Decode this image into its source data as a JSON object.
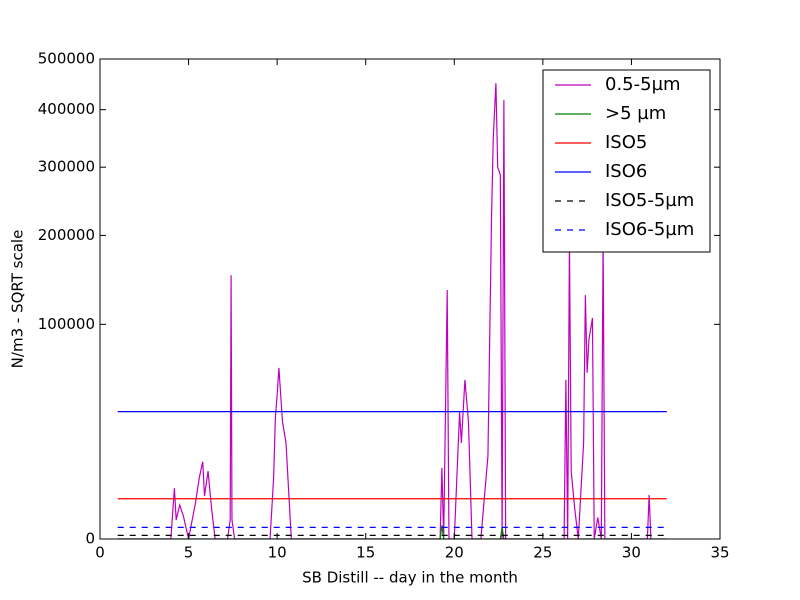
{
  "chart_data": {
    "type": "line",
    "xlabel": "SB Distill -- day in the month",
    "ylabel": "N/m3 - SQRT scale",
    "yscale": "sqrt",
    "xlim": [
      0,
      35
    ],
    "xticks": [
      0,
      5,
      10,
      15,
      20,
      25,
      30,
      35
    ],
    "ylim": [
      0,
      500000
    ],
    "yticks": [
      0,
      100000,
      200000,
      300000,
      400000,
      500000
    ],
    "legend": "upper right",
    "series": [
      {
        "name": "0.5-5µm",
        "color": "#bf00bf",
        "dash": false,
        "x": [
          1,
          4.0,
          4.2,
          4.3,
          4.5,
          4.7,
          5.0,
          5.4,
          5.6,
          5.8,
          5.9,
          6.1,
          6.3,
          6.5,
          7.2,
          7.35,
          7.4,
          7.45,
          7.6,
          9.6,
          9.8,
          9.9,
          10.0,
          10.1,
          10.3,
          10.5,
          10.8,
          12.0,
          12.2,
          19.2,
          19.3,
          19.4,
          19.6,
          19.7,
          20.0,
          20.3,
          20.4,
          20.6,
          20.8,
          21.0,
          21.5,
          21.9,
          22.1,
          22.2,
          22.35,
          22.45,
          22.6,
          22.7,
          22.8,
          22.9,
          23.2,
          25.0,
          26.2,
          26.3,
          26.4,
          26.5,
          26.6,
          26.8,
          27.0,
          27.3,
          27.4,
          27.5,
          27.6,
          27.8,
          27.9,
          28.1,
          28.3,
          28.4,
          28.5,
          30.9,
          31.0,
          31.1
        ],
        "values": [
          0,
          0,
          5600,
          800,
          2500,
          1200,
          0,
          3000,
          8000,
          13000,
          4000,
          10000,
          2000,
          0,
          0,
          800,
          151000,
          800,
          0,
          0,
          8000,
          31800,
          45000,
          63500,
          30000,
          20000,
          0,
          0,
          0,
          0,
          11000,
          0,
          134500,
          0,
          0,
          35000,
          20000,
          54900,
          30000,
          0,
          0,
          15000,
          221000,
          349000,
          451000,
          300000,
          287500,
          0,
          418000,
          0,
          0,
          0,
          0,
          55000,
          0,
          194000,
          10000,
          2000,
          0,
          20000,
          129000,
          60000,
          86000,
          106000,
          0,
          1000,
          0,
          194000,
          0,
          0,
          4200,
          0
        ]
      },
      {
        "name": ">5 µm",
        "color": "#008000",
        "dash": false,
        "x": [
          1,
          19.2,
          19.3,
          19.4,
          22.6,
          22.7,
          22.8,
          32
        ],
        "values": [
          0,
          0,
          400,
          0,
          0,
          300,
          0,
          0
        ]
      },
      {
        "name": "ISO5",
        "color": "#ff0000",
        "dash": false,
        "x": [
          1,
          32
        ],
        "values": [
          3520,
          3520
        ]
      },
      {
        "name": "ISO6",
        "color": "#0000ff",
        "dash": false,
        "x": [
          1,
          32
        ],
        "values": [
          35200,
          35200
        ]
      },
      {
        "name": "ISO5-5µm",
        "color": "#000000",
        "dash": true,
        "x": [
          1,
          32
        ],
        "values": [
          29,
          29
        ]
      },
      {
        "name": "ISO6-5µm",
        "color": "#0000ff",
        "dash": true,
        "x": [
          1,
          32
        ],
        "values": [
          293,
          293
        ]
      }
    ]
  }
}
